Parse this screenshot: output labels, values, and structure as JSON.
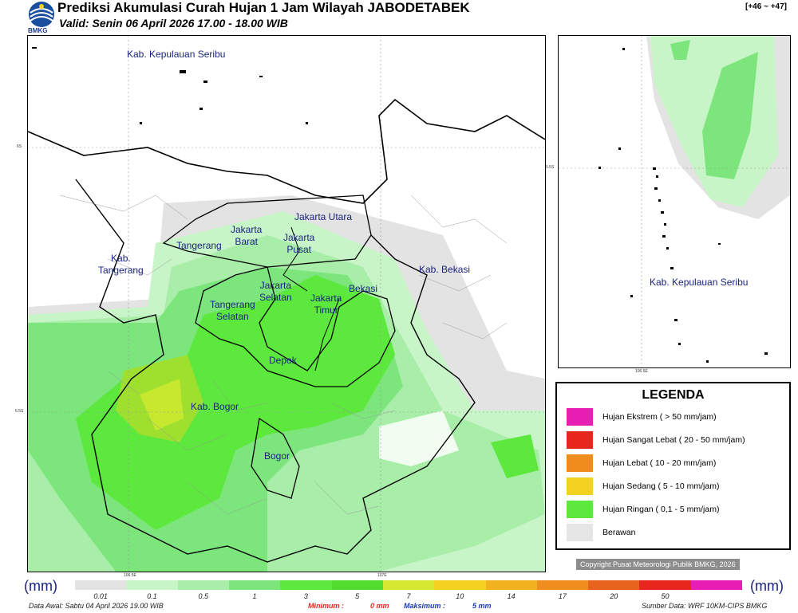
{
  "header": {
    "title": "Prediksi Akumulasi Curah Hujan 1 Jam Wilayah JABODETABEK",
    "subtitle": "Valid: Senin 06 April 2026 17.00 - 18.00 WIB",
    "forecast_hour": "[+46 ~ +47]",
    "logo_text": "BMKG"
  },
  "map": {
    "regions": {
      "kep_seribu": "Kab. Kepulauan Seribu",
      "jakarta_utara": "Jakarta Utara",
      "jakarta_barat": "Jakarta\nBarat",
      "jakarta_pusat": "Jakarta\nPusat",
      "tangerang": "Tangerang",
      "kab_tangerang": "Kab.\nTangerang",
      "kab_bekasi": "Kab. Bekasi",
      "jakarta_selatan": "Jakarta\nSelatan",
      "jakarta_timur": "Jakarta\nTimur",
      "bekasi": "Bekasi",
      "tangerang_selatan": "Tangerang\nSelatan",
      "depok": "Depok",
      "kab_bogor": "Kab. Bogor",
      "bogor": "Bogor"
    },
    "coords": {
      "lat_6s": "6S",
      "lat_65s": "6.5S",
      "lon_1065e": "106.5E",
      "lon_107e": "107E",
      "inset_lat": "5.5S",
      "inset_lon": "106.5E"
    },
    "inset_label": "Kab. Kepulauan Seribu"
  },
  "legend": {
    "title": "LEGENDA",
    "items": [
      {
        "label": "Hujan Ekstrem ( > 50 mm/jam)",
        "color": "#e81fb5"
      },
      {
        "label": "Hujan Sangat Lebat ( 20 - 50 mm/jam)",
        "color": "#e8261e"
      },
      {
        "label": "Hujan Lebat ( 10 - 20 mm/jam)",
        "color": "#f08c1e"
      },
      {
        "label": "Hujan Sedang ( 5 - 10 mm/jam)",
        "color": "#f2d21e"
      },
      {
        "label": "Hujan Ringan ( 0,1 - 5 mm/jam)",
        "color": "#5ce83c"
      },
      {
        "label": "Berawan",
        "color": "#e6e6e6"
      }
    ]
  },
  "copyright": "Copyright Pusat Meteorologi Publik BMKG, 2026",
  "scale": {
    "unit": "(mm)",
    "ticks": [
      "0.01",
      "0.1",
      "0.5",
      "1",
      "3",
      "5",
      "7",
      "10",
      "14",
      "17",
      "20",
      "50"
    ],
    "colors": [
      "#e3e3e3",
      "#c8f5c8",
      "#a8eda8",
      "#7ce67c",
      "#5ce83c",
      "#52dd2e",
      "#d6e832",
      "#f2d21e",
      "#f0b21e",
      "#ef8e1e",
      "#e8631e",
      "#e8261e",
      "#e81fb5"
    ]
  },
  "footer": {
    "data_awal": "Data Awal: Sabtu 04 April 2026 19.00 WIB",
    "minimum_label": "Minimum :",
    "minimum_value": "0 mm",
    "maximum_label": "Maksimum :",
    "maximum_value": "5 mm",
    "sumber": "Sumber Data: WRF 10KM-CIPS BMKG"
  }
}
